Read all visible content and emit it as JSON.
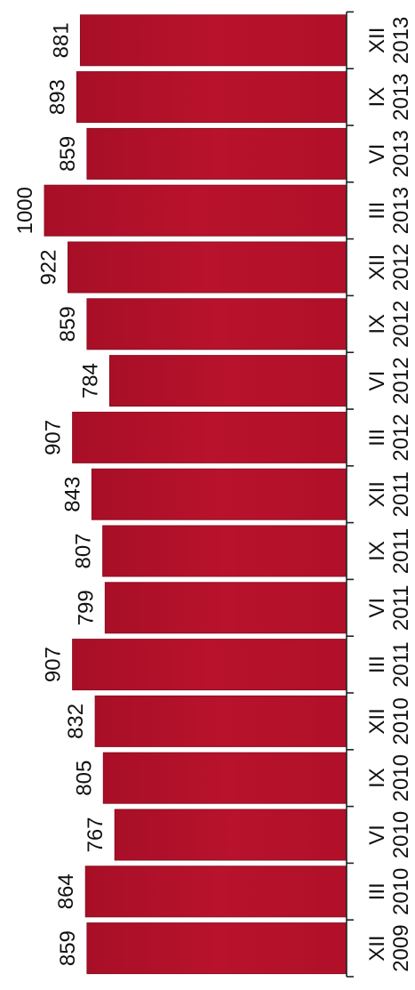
{
  "chart_data": {
    "type": "bar",
    "orientation": "horizontal",
    "text_rotation": "rotated 90 degrees counter-clockwise",
    "categories": [
      [
        "XII",
        "2009"
      ],
      [
        "III",
        "2010"
      ],
      [
        "VI",
        "2010"
      ],
      [
        "IX",
        "2010"
      ],
      [
        "XII",
        "2010"
      ],
      [
        "III",
        "2011"
      ],
      [
        "VI",
        "2011"
      ],
      [
        "IX",
        "2011"
      ],
      [
        "XII",
        "2011"
      ],
      [
        "III",
        "2012"
      ],
      [
        "VI",
        "2012"
      ],
      [
        "IX",
        "2012"
      ],
      [
        "XII",
        "2012"
      ],
      [
        "III",
        "2013"
      ],
      [
        "VI",
        "2013"
      ],
      [
        "IX",
        "2013"
      ],
      [
        "XII",
        "2013"
      ]
    ],
    "values": [
      859,
      864,
      767,
      805,
      832,
      907,
      799,
      807,
      843,
      907,
      784,
      859,
      922,
      1000,
      859,
      893,
      881
    ],
    "value_labels": [
      "859",
      "864",
      "767",
      "805",
      "832",
      "907",
      "799",
      "807",
      "843",
      "907",
      "784",
      "859",
      "922",
      "1000",
      "859",
      "893",
      "881"
    ],
    "bar_color": "#b3102a",
    "grid": false,
    "legend": "none"
  }
}
